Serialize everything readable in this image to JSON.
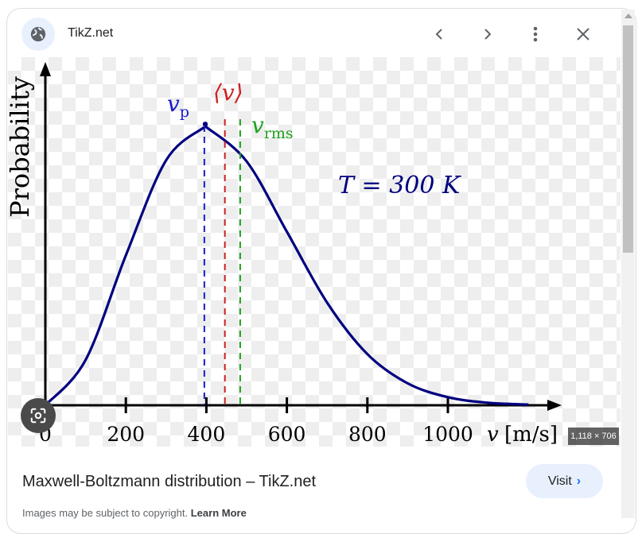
{
  "header": {
    "site_name": "TikZ.net",
    "icons": [
      "globe-icon",
      "chevron-left-icon",
      "chevron-right-icon",
      "more-vert-icon",
      "close-icon"
    ]
  },
  "image": {
    "dimensions_badge": "1,118 × 706"
  },
  "result": {
    "title": "Maxwell-Boltzmann distribution – TikZ.net",
    "visit_label": "Visit",
    "copyright_text": "Images may be subject to copyright.",
    "learn_more": "Learn More"
  },
  "chart_data": {
    "type": "line",
    "ylabel": "Probability",
    "xlabel_var": "v",
    "xlabel_unit": "[m/s]",
    "x_ticks": [
      "0",
      "200",
      "400",
      "600",
      "800",
      "1000"
    ],
    "x_range": [
      0,
      1200
    ],
    "annotation": "T = 300 K",
    "series": [
      {
        "color": "#000080",
        "x": [
          0,
          100,
          200,
          300,
          395,
          400,
          500,
          600,
          700,
          800,
          900,
          1000,
          1100,
          1200
        ],
        "y": [
          0,
          0.163,
          0.539,
          0.881,
          1,
          1.0,
          0.877,
          0.624,
          0.369,
          0.184,
          0.079,
          0.029,
          0.009,
          0.0025
        ]
      }
    ],
    "markers": [
      {
        "label": "v_p",
        "value": 395,
        "color": "#1a1acc"
      },
      {
        "label": "⟨v⟩",
        "value": 446,
        "color": "#cc2020"
      },
      {
        "label": "v_rms",
        "value": 484,
        "color": "#20a020"
      }
    ]
  }
}
